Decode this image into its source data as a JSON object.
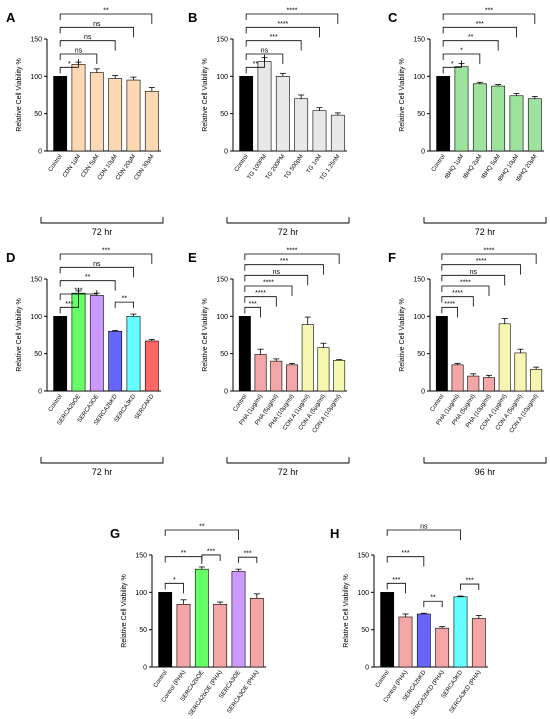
{
  "figure": {
    "title": ""
  },
  "chart_data": [
    {
      "panel": "A",
      "type": "bar",
      "ylabel": "Relative Cell Viability %",
      "ylim": [
        0,
        150
      ],
      "yticks": [
        0,
        50,
        100,
        150
      ],
      "categories": [
        "Control",
        "CDN 1µM",
        "CDN 5µM",
        "CDN 10µM",
        "CDN 20µM",
        "CDN 30µM"
      ],
      "values": [
        100,
        116,
        105,
        97,
        95,
        80
      ],
      "errors": [
        0,
        3,
        5,
        4,
        4,
        5
      ],
      "colors": [
        "#000000",
        "#fcd9b4",
        "#fcd9b4",
        "#fcd9b4",
        "#fcd9b4",
        "#fcd9b4"
      ],
      "time_label": "72 hr",
      "significance": [
        {
          "to": 1,
          "label": "*"
        },
        {
          "to": 2,
          "label": "ns"
        },
        {
          "to": 3,
          "label": "ns"
        },
        {
          "to": 4,
          "label": "ns"
        },
        {
          "to": 5,
          "label": "**"
        }
      ]
    },
    {
      "panel": "B",
      "type": "bar",
      "ylabel": "Relative Cell Viability %",
      "ylim": [
        0,
        150
      ],
      "yticks": [
        0,
        50,
        100,
        150
      ],
      "categories": [
        "Control",
        "TG 100PM",
        "TG 200PM",
        "TG 500pM",
        "TG 1nM",
        "TG 1.25nM"
      ],
      "values": [
        100,
        120,
        100,
        70,
        54,
        48
      ],
      "errors": [
        0,
        5,
        4,
        5,
        4,
        3
      ],
      "colors": [
        "#000000",
        "#e8e8e8",
        "#e8e8e8",
        "#e8e8e8",
        "#e8e8e8",
        "#e8e8e8"
      ],
      "time_label": "72 hr",
      "significance": [
        {
          "to": 1,
          "label": "**"
        },
        {
          "to": 2,
          "label": "ns"
        },
        {
          "to": 3,
          "label": "***"
        },
        {
          "to": 4,
          "label": "****"
        },
        {
          "to": 5,
          "label": "****"
        }
      ]
    },
    {
      "panel": "C",
      "type": "bar",
      "ylabel": "Relative Cell Viability %",
      "ylim": [
        0,
        150
      ],
      "yticks": [
        0,
        50,
        100,
        150
      ],
      "categories": [
        "Control",
        "tBHQ 1µM",
        "tBHQ 2µM",
        "tBHQ 5µM",
        "tBHQ 10µM",
        "tBHQ 20µM"
      ],
      "values": [
        100,
        113,
        90,
        87,
        74,
        70
      ],
      "errors": [
        0,
        4,
        2,
        2,
        3,
        3
      ],
      "colors": [
        "#000000",
        "#9de29d",
        "#9de29d",
        "#9de29d",
        "#9de29d",
        "#9de29d"
      ],
      "time_label": "72 hr",
      "significance": [
        {
          "to": 1,
          "label": "*"
        },
        {
          "to": 2,
          "label": "*"
        },
        {
          "to": 3,
          "label": "**"
        },
        {
          "to": 4,
          "label": "***"
        },
        {
          "to": 5,
          "label": "***"
        }
      ]
    },
    {
      "panel": "D",
      "type": "bar",
      "ylabel": "Relative Cell Viability %",
      "ylim": [
        0,
        150
      ],
      "yticks": [
        0,
        50,
        100,
        150
      ],
      "categories": [
        "Control",
        "SERCA2bOE",
        "SERCA3OE",
        "SERCA2bKD",
        "SERCA3KD",
        "SERCAKD"
      ],
      "values": [
        100,
        131,
        128,
        80,
        100,
        67
      ],
      "errors": [
        0,
        3,
        3,
        1,
        3,
        2
      ],
      "colors": [
        "#000000",
        "#66ff66",
        "#cc99ff",
        "#6666ff",
        "#66ffff",
        "#ff6666"
      ],
      "time_label": "72 hr",
      "significance": [
        {
          "to": 1,
          "label": "***"
        },
        {
          "to": 2,
          "label": "***"
        },
        {
          "to": 3,
          "label": "**"
        },
        {
          "to": 4,
          "label": "ns"
        },
        {
          "to": 5,
          "label": "***"
        },
        {
          "from": 3,
          "to": 4,
          "label": "**"
        }
      ]
    },
    {
      "panel": "E",
      "type": "bar",
      "ylabel": "Relative Cell Viability %",
      "ylim": [
        0,
        150
      ],
      "yticks": [
        0,
        50,
        100,
        150
      ],
      "categories": [
        "Control",
        "PHA (1µg/ml)",
        "PHA (5µg/ml)",
        "PHA (10µg/ml)",
        "CON A (1µg/ml)",
        "CON A (5µg/ml)",
        "CON A (10µg/ml)"
      ],
      "values": [
        100,
        49,
        40,
        35,
        89,
        58,
        41
      ],
      "errors": [
        0,
        7,
        3,
        2,
        10,
        6,
        1
      ],
      "colors": [
        "#000000",
        "#f4a6a6",
        "#f4a6a6",
        "#f4a6a6",
        "#f5f7b0",
        "#f5f7b0",
        "#f5f7b0"
      ],
      "time_label": "72 hr",
      "significance": [
        {
          "to": 1,
          "label": "***"
        },
        {
          "to": 2,
          "label": "****"
        },
        {
          "to": 3,
          "label": "****"
        },
        {
          "to": 4,
          "label": "ns"
        },
        {
          "to": 5,
          "label": "***"
        },
        {
          "to": 6,
          "label": "****"
        }
      ]
    },
    {
      "panel": "F",
      "type": "bar",
      "ylabel": "Relative Cell Viability %",
      "ylim": [
        0,
        150
      ],
      "yticks": [
        0,
        50,
        100,
        150
      ],
      "categories": [
        "Control",
        "PHA (1µg/ml)",
        "PHA (5µg/ml)",
        "PHA (10µg/ml)",
        "CON A (1µg/ml)",
        "CON A (5µg/ml)",
        "CON A (10µg/ml)"
      ],
      "values": [
        100,
        35,
        20,
        18,
        90,
        51,
        29
      ],
      "errors": [
        0,
        2,
        3,
        3,
        7,
        5,
        3
      ],
      "colors": [
        "#000000",
        "#f4a6a6",
        "#f4a6a6",
        "#f4a6a6",
        "#f5f7b0",
        "#f5f7b0",
        "#f5f7b0"
      ],
      "time_label": "96 hr",
      "significance": [
        {
          "to": 1,
          "label": "****"
        },
        {
          "to": 2,
          "label": "****"
        },
        {
          "to": 3,
          "label": "****"
        },
        {
          "to": 4,
          "label": "ns"
        },
        {
          "to": 5,
          "label": "****"
        },
        {
          "to": 6,
          "label": "****"
        }
      ]
    },
    {
      "panel": "G",
      "type": "bar",
      "ylabel": "Relative Cell Viability %",
      "ylim": [
        0,
        150
      ],
      "yticks": [
        0,
        50,
        100,
        150
      ],
      "categories": [
        "Control",
        "Control (PHA)",
        "SERCA2bOE",
        "SERCA2bOE (PHA)",
        "SERCA3OE",
        "SERCA3OE (PHA)"
      ],
      "values": [
        100,
        84,
        131,
        84,
        128,
        92
      ],
      "errors": [
        0,
        6,
        3,
        3,
        3,
        6
      ],
      "colors": [
        "#000000",
        "#f4a6a6",
        "#66ff66",
        "#f4a6a6",
        "#cc99ff",
        "#f4a6a6"
      ],
      "time_label": "",
      "significance": [
        {
          "from": 0,
          "to": 1,
          "label": "*"
        },
        {
          "from": 0,
          "to": 2,
          "label": "**"
        },
        {
          "from": 0,
          "to": 4,
          "label": "**"
        },
        {
          "from": 2,
          "to": 3,
          "label": "***"
        },
        {
          "from": 4,
          "to": 5,
          "label": "***"
        }
      ]
    },
    {
      "panel": "H",
      "type": "bar",
      "ylabel": "Relative Cell Viability %",
      "ylim": [
        0,
        150
      ],
      "yticks": [
        0,
        50,
        100,
        150
      ],
      "categories": [
        "Control",
        "Control (PHA)",
        "SERCA2bKD",
        "SERCA2bKD (PHA)",
        "SERCA3KD",
        "SERCA3KD (PHA)"
      ],
      "values": [
        100,
        67,
        71,
        52,
        94,
        65
      ],
      "errors": [
        0,
        4,
        1,
        2,
        1,
        4
      ],
      "colors": [
        "#000000",
        "#f4a6a6",
        "#6666ff",
        "#f4a6a6",
        "#66ffff",
        "#f4a6a6"
      ],
      "time_label": "",
      "significance": [
        {
          "from": 0,
          "to": 1,
          "label": "***"
        },
        {
          "from": 0,
          "to": 2,
          "label": "***"
        },
        {
          "from": 0,
          "to": 4,
          "label": "ns"
        },
        {
          "from": 2,
          "to": 3,
          "label": "**"
        },
        {
          "from": 4,
          "to": 5,
          "label": "***"
        }
      ]
    }
  ]
}
